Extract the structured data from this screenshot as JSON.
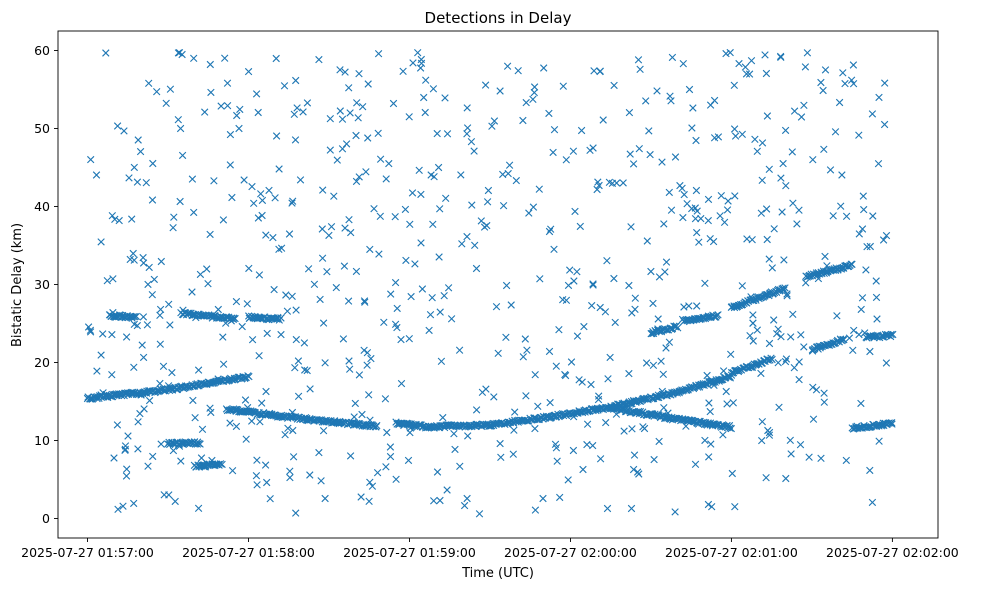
{
  "chart_data": {
    "type": "scatter",
    "title": "Detections in Delay",
    "xlabel": "Time (UTC)",
    "ylabel": "Bistatic Delay (km)",
    "marker": "x",
    "color": "#1f77b4",
    "grid": false,
    "x_axis": "datetime",
    "xlim": [
      "2025-07-27 01:56:49",
      "2025-07-27 02:02:17"
    ],
    "ylim": [
      -2.5,
      62.5
    ],
    "x_ticks": [
      "2025-07-27 01:57:00",
      "2025-07-27 01:58:00",
      "2025-07-27 01:59:00",
      "2025-07-27 02:00:00",
      "2025-07-27 02:01:00",
      "2025-07-27 02:02:00"
    ],
    "y_ticks": [
      "0",
      "10",
      "20",
      "30",
      "40",
      "50",
      "60"
    ],
    "time_range": [
      "2025-07-27 01:57:00",
      "2025-07-27 02:02:00"
    ],
    "tracks": [
      {
        "points": [
          [
            "2025-07-27 01:57:00",
            15.4
          ],
          [
            "2025-07-27 01:57:30",
            16.5
          ],
          [
            "2025-07-27 01:58:00",
            18.2
          ]
        ]
      },
      {
        "points": [
          [
            "2025-07-27 01:57:52",
            14.0
          ],
          [
            "2025-07-27 01:58:20",
            12.8
          ],
          [
            "2025-07-27 01:58:48",
            11.8
          ]
        ]
      },
      {
        "points": [
          [
            "2025-07-27 01:58:55",
            12.2
          ],
          [
            "2025-07-27 01:59:10",
            11.6
          ]
        ]
      },
      {
        "points": [
          [
            "2025-07-27 01:59:10",
            11.8
          ],
          [
            "2025-07-27 01:59:30",
            12.0
          ],
          [
            "2025-07-27 01:59:50",
            12.9
          ],
          [
            "2025-07-27 02:00:15",
            14.3
          ],
          [
            "2025-07-27 02:00:40",
            16.2
          ],
          [
            "2025-07-27 02:01:00",
            18.2
          ]
        ]
      },
      {
        "points": [
          [
            "2025-07-27 02:00:15",
            14.2
          ],
          [
            "2025-07-27 02:00:40",
            12.7
          ],
          [
            "2025-07-27 02:01:00",
            11.7
          ]
        ]
      },
      {
        "points": [
          [
            "2025-07-27 02:01:00",
            18.7
          ],
          [
            "2025-07-27 02:01:15",
            20.5
          ]
        ]
      },
      {
        "points": [
          [
            "2025-07-27 02:01:00",
            27.0
          ],
          [
            "2025-07-27 02:01:20",
            29.5
          ]
        ]
      },
      {
        "points": [
          [
            "2025-07-27 02:01:28",
            31.0
          ],
          [
            "2025-07-27 02:01:45",
            32.5
          ]
        ]
      },
      {
        "points": [
          [
            "2025-07-27 02:01:30",
            21.6
          ],
          [
            "2025-07-27 02:01:42",
            23.0
          ]
        ]
      },
      {
        "points": [
          [
            "2025-07-27 02:01:45",
            11.6
          ],
          [
            "2025-07-27 02:02:00",
            12.2
          ]
        ]
      },
      {
        "points": [
          [
            "2025-07-27 02:01:50",
            23.2
          ],
          [
            "2025-07-27 02:02:00",
            23.5
          ]
        ]
      },
      {
        "points": [
          [
            "2025-07-27 01:57:08",
            26.0
          ],
          [
            "2025-07-27 01:57:18",
            25.8
          ]
        ]
      },
      {
        "points": [
          [
            "2025-07-27 01:57:35",
            26.3
          ],
          [
            "2025-07-27 01:57:55",
            25.6
          ]
        ]
      },
      {
        "points": [
          [
            "2025-07-27 01:58:00",
            25.8
          ],
          [
            "2025-07-27 01:58:12",
            25.6
          ]
        ]
      },
      {
        "points": [
          [
            "2025-07-27 02:00:30",
            23.8
          ],
          [
            "2025-07-27 02:00:40",
            24.6
          ]
        ]
      },
      {
        "points": [
          [
            "2025-07-27 02:00:42",
            25.4
          ],
          [
            "2025-07-27 02:00:55",
            26.0
          ]
        ]
      },
      {
        "points": [
          [
            "2025-07-27 01:57:40",
            6.7
          ],
          [
            "2025-07-27 01:57:50",
            6.9
          ]
        ]
      },
      {
        "points": [
          [
            "2025-07-27 01:57:30",
            9.6
          ],
          [
            "2025-07-27 01:57:42",
            9.7
          ]
        ]
      }
    ],
    "noise": {
      "count": 760,
      "ylim": [
        0.5,
        59.8
      ]
    }
  }
}
